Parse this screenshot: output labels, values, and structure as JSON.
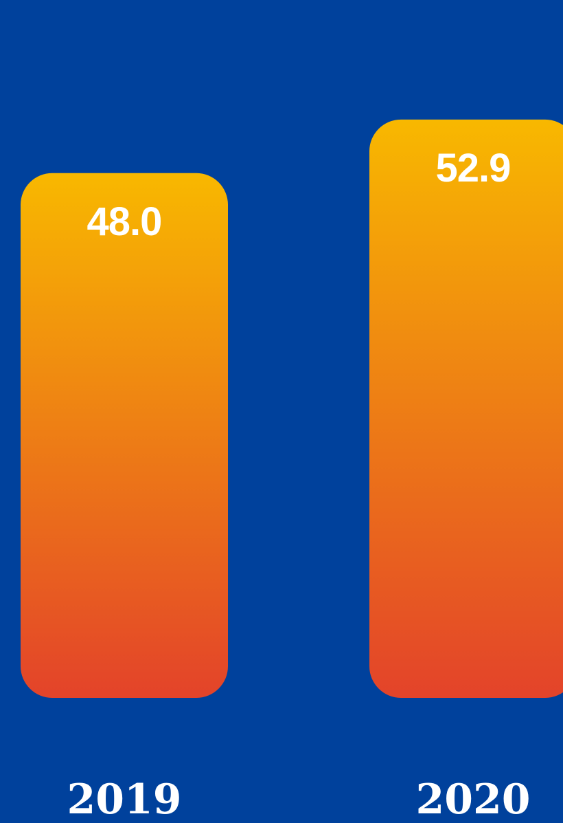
{
  "chart_data": {
    "type": "bar",
    "categories": [
      "2019",
      "2020"
    ],
    "values": [
      48.0,
      52.9
    ],
    "value_labels": [
      "48.0",
      "52.9"
    ],
    "title": "",
    "xlabel": "",
    "ylabel": "",
    "grid": false,
    "legend": "none"
  },
  "colors": {
    "background": "#00419c",
    "bar_top": "#f8b800",
    "bar_bottom": "#e3432a",
    "text": "#ffffff"
  }
}
